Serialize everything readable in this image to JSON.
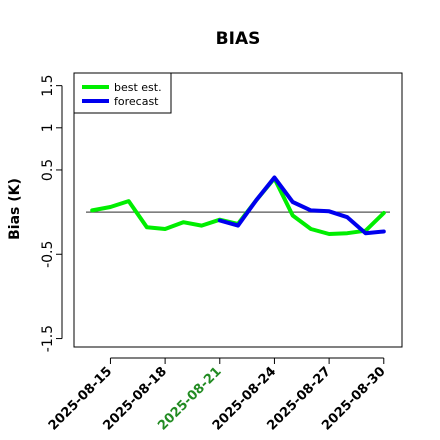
{
  "chart_data": {
    "type": "line",
    "title": "BIAS",
    "xlabel": "",
    "ylabel": "Bias (K)",
    "ylim": [
      -1.6,
      1.65
    ],
    "yticks": [
      -1.5,
      -0.5,
      0.5,
      1.0,
      1.5
    ],
    "reference_line": 0,
    "x_date_range": [
      "2025-08-13",
      "2025-08-31"
    ],
    "xticks": [
      {
        "label": "2025-08-15",
        "color": "#000000"
      },
      {
        "label": "2025-08-18",
        "color": "#000000"
      },
      {
        "label": "2025-08-21",
        "color": "#228B22"
      },
      {
        "label": "2025-08-24",
        "color": "#000000"
      },
      {
        "label": "2025-08-27",
        "color": "#000000"
      },
      {
        "label": "2025-08-30",
        "color": "#000000"
      }
    ],
    "legend": {
      "position": "top-left"
    },
    "series": [
      {
        "name": "best est.",
        "color": "#00ee00",
        "x": [
          "2025-08-14",
          "2025-08-15",
          "2025-08-16",
          "2025-08-17",
          "2025-08-18",
          "2025-08-19",
          "2025-08-20",
          "2025-08-21",
          "2025-08-22",
          "2025-08-23",
          "2025-08-24",
          "2025-08-25",
          "2025-08-26",
          "2025-08-27",
          "2025-08-28",
          "2025-08-29",
          "2025-08-30"
        ],
        "values": [
          0.02,
          0.06,
          0.13,
          -0.18,
          -0.2,
          -0.12,
          -0.16,
          -0.09,
          -0.14,
          0.14,
          0.4,
          -0.04,
          -0.2,
          -0.26,
          -0.25,
          -0.22,
          -0.01
        ]
      },
      {
        "name": "forecast",
        "color": "#0000ee",
        "x": [
          "2025-08-21",
          "2025-08-22",
          "2025-08-23",
          "2025-08-24",
          "2025-08-25",
          "2025-08-26",
          "2025-08-27",
          "2025-08-28",
          "2025-08-29",
          "2025-08-30"
        ],
        "values": [
          -0.1,
          -0.16,
          0.14,
          0.41,
          0.12,
          0.02,
          0.01,
          -0.06,
          -0.25,
          -0.23
        ]
      }
    ]
  }
}
